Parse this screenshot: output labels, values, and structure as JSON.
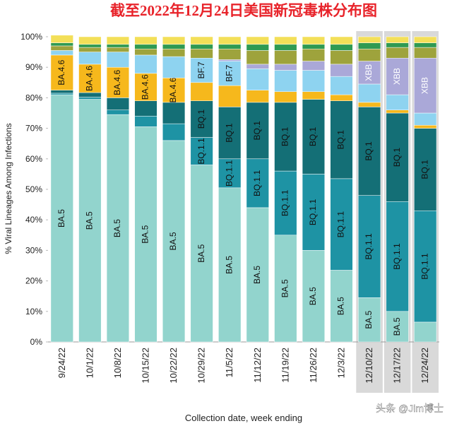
{
  "chart_data": {
    "type": "stacked-bar",
    "title": "截至2022年12月24日美国新冠毒株分布图",
    "y_label": "% Viral Lineages Among Infections",
    "x_label": "Collection date, week ending",
    "watermark": "头条 @Jim博士",
    "categories": [
      "9/24/22",
      "10/1/22",
      "10/8/22",
      "10/15/22",
      "10/22/22",
      "10/29/22",
      "11/5/22",
      "11/12/22",
      "11/19/22",
      "11/26/22",
      "12/3/22",
      "12/10/22",
      "12/17/22",
      "12/24/22"
    ],
    "ylim": [
      0,
      100
    ],
    "yticks": [
      {
        "value": 0,
        "label": "0%"
      },
      {
        "value": 10,
        "label": "10%"
      },
      {
        "value": 20,
        "label": "20%"
      },
      {
        "value": 30,
        "label": "30%"
      },
      {
        "value": 40,
        "label": "40%"
      },
      {
        "value": 50,
        "label": "50%"
      },
      {
        "value": 60,
        "label": "60%"
      },
      {
        "value": 70,
        "label": "70%"
      },
      {
        "value": 80,
        "label": "80%"
      },
      {
        "value": 90,
        "label": "90%"
      },
      {
        "value": 100,
        "label": "100%"
      }
    ],
    "series": [
      {
        "name": "BA.5",
        "color": "#92d4cd",
        "values": [
          81,
          79.5,
          74.5,
          70.5,
          66,
          58,
          50.5,
          44,
          35,
          30,
          23.5,
          14.5,
          10,
          6.5
        ]
      },
      {
        "name": "BQ.1.1",
        "color": "#1e93a4",
        "values": [
          0.5,
          0.7,
          1.5,
          3.5,
          5.5,
          9,
          9.5,
          16,
          21,
          25,
          30,
          33.5,
          36,
          36.5
        ]
      },
      {
        "name": "BQ.1",
        "color": "#146f76",
        "values": [
          1,
          1.5,
          4,
          5,
          7,
          12,
          17,
          18.5,
          22.5,
          24.5,
          25.5,
          29,
          29,
          27
        ]
      },
      {
        "name": "BA.4.6",
        "color": "#f6b81c",
        "values": [
          11.5,
          9.3,
          10,
          9,
          8,
          6,
          7,
          4,
          3.5,
          2.5,
          2,
          1.5,
          1,
          1
        ]
      },
      {
        "name": "BF.7",
        "color": "#8ed3f0",
        "values": [
          1.5,
          4,
          5,
          6,
          7,
          8,
          8,
          7,
          7,
          7,
          6,
          6,
          5,
          4
        ]
      },
      {
        "name": "XBB",
        "color": "#aaa8d8",
        "values": [
          0,
          0,
          0,
          0,
          0,
          0,
          0.5,
          1.5,
          2,
          3,
          4,
          7.5,
          12,
          18
        ]
      },
      {
        "color": "#9ea33c",
        "values": [
          1.5,
          1.5,
          1.5,
          2,
          2.5,
          3,
          3.5,
          4.5,
          4.5,
          4,
          4.5,
          4,
          3.5,
          3.5
        ]
      },
      {
        "color": "#2f9a52",
        "values": [
          1,
          1,
          1,
          1.5,
          1.5,
          1.5,
          1.5,
          2,
          2,
          1.5,
          2,
          2,
          1.5,
          1.5
        ]
      },
      {
        "color": "#f3df58",
        "values": [
          2.5,
          2.5,
          2.5,
          2.5,
          2.5,
          2.5,
          2.5,
          2.5,
          2.5,
          2.5,
          2.5,
          2,
          2,
          2
        ]
      }
    ],
    "shaded_from": "12/10/22"
  }
}
